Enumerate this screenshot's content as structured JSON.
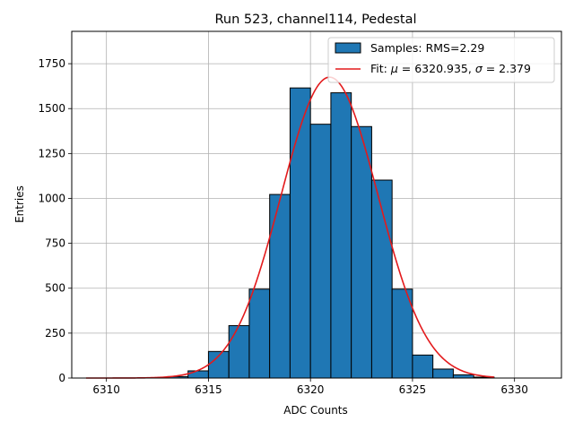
{
  "chart_data": {
    "type": "bar",
    "title": "Run 523, channel114, Pedestal",
    "xlabel": "ADC Counts",
    "ylabel": "Entries",
    "xlim": [
      6308.3,
      6332.3
    ],
    "ylim": [
      0,
      1930
    ],
    "grid": true,
    "legend_position": "top-right",
    "x_ticks": [
      6310,
      6315,
      6320,
      6325,
      6330
    ],
    "y_ticks": [
      0,
      250,
      500,
      750,
      1000,
      1250,
      1500,
      1750
    ],
    "bar_color": "#1f77b4",
    "bar_edge_color": "#000000",
    "fit_color": "#e31a1c",
    "histogram": {
      "bin_width": 1,
      "bins": [
        {
          "left": 6313,
          "count": 8
        },
        {
          "left": 6314,
          "count": 40
        },
        {
          "left": 6315,
          "count": 148
        },
        {
          "left": 6316,
          "count": 292
        },
        {
          "left": 6317,
          "count": 495
        },
        {
          "left": 6318,
          "count": 1022
        },
        {
          "left": 6319,
          "count": 1615
        },
        {
          "left": 6320,
          "count": 1413
        },
        {
          "left": 6321,
          "count": 1588
        },
        {
          "left": 6322,
          "count": 1400
        },
        {
          "left": 6323,
          "count": 1102
        },
        {
          "left": 6324,
          "count": 495
        },
        {
          "left": 6325,
          "count": 128
        },
        {
          "left": 6326,
          "count": 50
        },
        {
          "left": 6327,
          "count": 18
        },
        {
          "left": 6328,
          "count": 5
        }
      ]
    },
    "fit": {
      "mu": 6320.935,
      "sigma": 2.379,
      "amplitude": 1675,
      "x_range": [
        6309,
        6329
      ]
    },
    "legend": {
      "samples_label": "Samples: RMS=2.29",
      "fit_label_prefix": "Fit: ",
      "fit_mu_symbol": "μ",
      "fit_mu_text": " = 6320.935, ",
      "fit_sigma_symbol": "σ",
      "fit_sigma_text": " = 2.379"
    }
  }
}
